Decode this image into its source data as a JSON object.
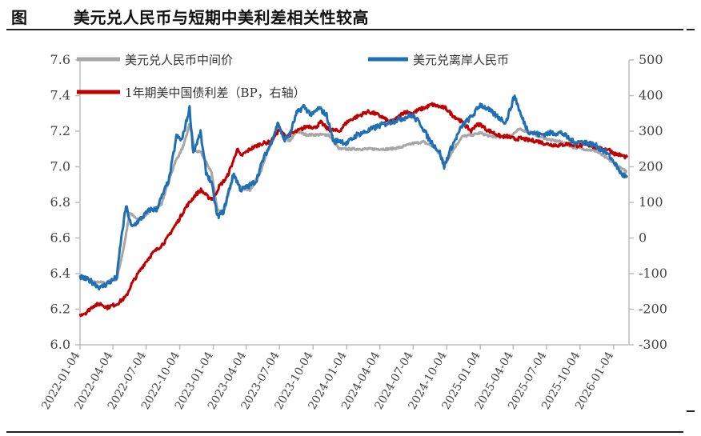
{
  "figure": {
    "label": "图",
    "title": "美元兑人民币与短期中美利差相关性较高"
  },
  "chart_data": {
    "type": "line",
    "legend_placement": "top",
    "grid": false,
    "xlim": [
      "2022-01-04",
      "2026-02-15"
    ],
    "x_ticks": [
      "2022-01-04",
      "2022-04-04",
      "2022-07-04",
      "2022-10-04",
      "2023-01-04",
      "2023-04-04",
      "2023-07-04",
      "2023-10-04",
      "2024-01-04",
      "2024-04-04",
      "2024-07-04",
      "2024-10-04",
      "2025-01-04",
      "2025-04-04",
      "2025-07-04",
      "2025-10-04",
      "2026-01-04"
    ],
    "y_left": {
      "ylim": [
        6.0,
        7.6
      ],
      "ticks": [
        "6.0",
        "6.2",
        "6.4",
        "6.6",
        "6.8",
        "7.0",
        "7.2",
        "7.4",
        "7.6"
      ]
    },
    "y_right": {
      "ylim": [
        -300,
        500
      ],
      "ticks": [
        "-300",
        "-200",
        "-100",
        "0",
        "100",
        "200",
        "300",
        "400",
        "500"
      ]
    },
    "series": [
      {
        "name": "美元兑人民币中间价",
        "axis": "left",
        "color": "#a6a6a6",
        "points": [
          [
            "2022-01-04",
            6.38
          ],
          [
            "2022-02-15",
            6.35
          ],
          [
            "2022-03-15",
            6.35
          ],
          [
            "2022-04-15",
            6.37
          ],
          [
            "2022-05-05",
            6.56
          ],
          [
            "2022-05-20",
            6.74
          ],
          [
            "2022-06-15",
            6.7
          ],
          [
            "2022-07-15",
            6.75
          ],
          [
            "2022-08-15",
            6.79
          ],
          [
            "2022-09-01",
            6.9
          ],
          [
            "2022-09-20",
            7.02
          ],
          [
            "2022-10-15",
            7.12
          ],
          [
            "2022-10-31",
            7.24
          ],
          [
            "2022-11-15",
            7.09
          ],
          [
            "2022-12-01",
            7.08
          ],
          [
            "2022-12-30",
            6.97
          ],
          [
            "2023-01-15",
            6.76
          ],
          [
            "2023-02-01",
            6.74
          ],
          [
            "2023-03-01",
            6.96
          ],
          [
            "2023-03-20",
            6.88
          ],
          [
            "2023-04-15",
            6.87
          ],
          [
            "2023-05-15",
            6.98
          ],
          [
            "2023-06-01",
            7.08
          ],
          [
            "2023-07-01",
            7.22
          ],
          [
            "2023-08-01",
            7.14
          ],
          [
            "2023-08-20",
            7.2
          ],
          [
            "2023-09-15",
            7.18
          ],
          [
            "2023-10-15",
            7.18
          ],
          [
            "2023-11-15",
            7.18
          ],
          [
            "2023-12-15",
            7.1
          ],
          [
            "2024-01-04",
            7.1
          ],
          [
            "2024-02-01",
            7.1
          ],
          [
            "2024-03-01",
            7.1
          ],
          [
            "2024-04-01",
            7.1
          ],
          [
            "2024-05-01",
            7.1
          ],
          [
            "2024-06-01",
            7.11
          ],
          [
            "2024-07-01",
            7.13
          ],
          [
            "2024-08-01",
            7.14
          ],
          [
            "2024-09-01",
            7.11
          ],
          [
            "2024-10-01",
            7.02
          ],
          [
            "2024-10-20",
            7.09
          ],
          [
            "2024-11-15",
            7.17
          ],
          [
            "2024-12-15",
            7.18
          ],
          [
            "2025-01-04",
            7.19
          ],
          [
            "2025-02-01",
            7.17
          ],
          [
            "2025-03-01",
            7.17
          ],
          [
            "2025-04-01",
            7.18
          ],
          [
            "2025-04-20",
            7.21
          ],
          [
            "2025-05-15",
            7.2
          ],
          [
            "2025-06-15",
            7.17
          ],
          [
            "2025-07-15",
            7.15
          ],
          [
            "2025-08-15",
            7.14
          ],
          [
            "2025-09-15",
            7.11
          ],
          [
            "2025-10-15",
            7.1
          ],
          [
            "2025-11-15",
            7.09
          ],
          [
            "2025-12-15",
            7.05
          ],
          [
            "2026-01-04",
            7.02
          ],
          [
            "2026-01-25",
            6.99
          ],
          [
            "2026-02-10",
            6.97
          ]
        ]
      },
      {
        "name": "美元兑离岸人民币",
        "axis": "left",
        "color": "#1f6fb5",
        "points": [
          [
            "2022-01-04",
            6.38
          ],
          [
            "2022-02-01",
            6.36
          ],
          [
            "2022-03-01",
            6.32
          ],
          [
            "2022-04-01",
            6.36
          ],
          [
            "2022-04-15",
            6.38
          ],
          [
            "2022-04-25",
            6.57
          ],
          [
            "2022-05-10",
            6.78
          ],
          [
            "2022-05-25",
            6.66
          ],
          [
            "2022-06-15",
            6.7
          ],
          [
            "2022-07-15",
            6.76
          ],
          [
            "2022-08-01",
            6.76
          ],
          [
            "2022-08-20",
            6.85
          ],
          [
            "2022-09-05",
            6.93
          ],
          [
            "2022-09-25",
            7.17
          ],
          [
            "2022-10-10",
            7.15
          ],
          [
            "2022-10-31",
            7.33
          ],
          [
            "2022-11-10",
            7.08
          ],
          [
            "2022-11-30",
            7.19
          ],
          [
            "2022-12-15",
            6.97
          ],
          [
            "2022-12-30",
            6.91
          ],
          [
            "2023-01-15",
            6.72
          ],
          [
            "2023-02-01",
            6.75
          ],
          [
            "2023-02-20",
            6.9
          ],
          [
            "2023-03-01",
            6.96
          ],
          [
            "2023-03-20",
            6.87
          ],
          [
            "2023-04-10",
            6.89
          ],
          [
            "2023-05-01",
            6.92
          ],
          [
            "2023-05-20",
            7.04
          ],
          [
            "2023-06-10",
            7.13
          ],
          [
            "2023-07-01",
            7.25
          ],
          [
            "2023-07-15",
            7.15
          ],
          [
            "2023-08-01",
            7.18
          ],
          [
            "2023-08-20",
            7.3
          ],
          [
            "2023-09-08",
            7.34
          ],
          [
            "2023-10-01",
            7.29
          ],
          [
            "2023-10-20",
            7.33
          ],
          [
            "2023-11-10",
            7.29
          ],
          [
            "2023-11-30",
            7.14
          ],
          [
            "2023-12-15",
            7.15
          ],
          [
            "2024-01-04",
            7.13
          ],
          [
            "2024-02-01",
            7.18
          ],
          [
            "2024-03-01",
            7.2
          ],
          [
            "2024-04-01",
            7.23
          ],
          [
            "2024-05-01",
            7.25
          ],
          [
            "2024-06-01",
            7.27
          ],
          [
            "2024-07-01",
            7.29
          ],
          [
            "2024-07-25",
            7.24
          ],
          [
            "2024-08-15",
            7.16
          ],
          [
            "2024-09-15",
            7.08
          ],
          [
            "2024-09-27",
            7.0
          ],
          [
            "2024-10-15",
            7.1
          ],
          [
            "2024-11-15",
            7.23
          ],
          [
            "2024-12-15",
            7.29
          ],
          [
            "2025-01-04",
            7.35
          ],
          [
            "2025-01-20",
            7.33
          ],
          [
            "2025-02-15",
            7.29
          ],
          [
            "2025-03-15",
            7.25
          ],
          [
            "2025-04-08",
            7.4
          ],
          [
            "2025-04-25",
            7.29
          ],
          [
            "2025-05-15",
            7.2
          ],
          [
            "2025-06-15",
            7.18
          ],
          [
            "2025-07-15",
            7.19
          ],
          [
            "2025-08-15",
            7.19
          ],
          [
            "2025-09-15",
            7.14
          ],
          [
            "2025-10-15",
            7.14
          ],
          [
            "2025-11-15",
            7.12
          ],
          [
            "2025-12-15",
            7.08
          ],
          [
            "2026-01-04",
            7.03
          ],
          [
            "2026-01-25",
            6.96
          ],
          [
            "2026-02-10",
            6.94
          ]
        ]
      },
      {
        "name": "1年期美中国债利差（BP，右轴）",
        "axis": "right",
        "color": "#c00000",
        "points": [
          [
            "2022-01-04",
            -215
          ],
          [
            "2022-01-20",
            -210
          ],
          [
            "2022-02-10",
            -190
          ],
          [
            "2022-03-01",
            -185
          ],
          [
            "2022-03-20",
            -195
          ],
          [
            "2022-04-15",
            -185
          ],
          [
            "2022-05-10",
            -165
          ],
          [
            "2022-05-25",
            -130
          ],
          [
            "2022-06-15",
            -95
          ],
          [
            "2022-07-01",
            -70
          ],
          [
            "2022-07-20",
            -45
          ],
          [
            "2022-08-10",
            -25
          ],
          [
            "2022-08-25",
            -10
          ],
          [
            "2022-09-15",
            25
          ],
          [
            "2022-10-01",
            50
          ],
          [
            "2022-10-20",
            85
          ],
          [
            "2022-11-15",
            120
          ],
          [
            "2022-12-01",
            135
          ],
          [
            "2022-12-20",
            115
          ],
          [
            "2023-01-04",
            110
          ],
          [
            "2023-01-20",
            145
          ],
          [
            "2023-02-10",
            170
          ],
          [
            "2023-03-01",
            220
          ],
          [
            "2023-03-10",
            250
          ],
          [
            "2023-03-20",
            230
          ],
          [
            "2023-04-15",
            250
          ],
          [
            "2023-05-15",
            265
          ],
          [
            "2023-06-10",
            270
          ],
          [
            "2023-07-04",
            305
          ],
          [
            "2023-07-20",
            285
          ],
          [
            "2023-08-10",
            295
          ],
          [
            "2023-09-01",
            305
          ],
          [
            "2023-09-20",
            315
          ],
          [
            "2023-10-10",
            310
          ],
          [
            "2023-10-25",
            325
          ],
          [
            "2023-11-15",
            305
          ],
          [
            "2023-12-15",
            300
          ],
          [
            "2024-01-04",
            325
          ],
          [
            "2024-01-20",
            335
          ],
          [
            "2024-02-10",
            345
          ],
          [
            "2024-03-01",
            355
          ],
          [
            "2024-03-20",
            350
          ],
          [
            "2024-04-10",
            340
          ],
          [
            "2024-05-01",
            325
          ],
          [
            "2024-05-20",
            335
          ],
          [
            "2024-06-10",
            355
          ],
          [
            "2024-07-01",
            350
          ],
          [
            "2024-07-20",
            360
          ],
          [
            "2024-08-10",
            368
          ],
          [
            "2024-08-25",
            375
          ],
          [
            "2024-09-10",
            370
          ],
          [
            "2024-10-01",
            365
          ],
          [
            "2024-10-20",
            345
          ],
          [
            "2024-11-10",
            330
          ],
          [
            "2024-11-25",
            315
          ],
          [
            "2024-12-10",
            300
          ],
          [
            "2024-12-20",
            315
          ],
          [
            "2025-01-04",
            320
          ],
          [
            "2025-01-20",
            305
          ],
          [
            "2025-02-10",
            295
          ],
          [
            "2025-03-01",
            285
          ],
          [
            "2025-03-20",
            285
          ],
          [
            "2025-04-08",
            278
          ],
          [
            "2025-04-25",
            280
          ],
          [
            "2025-05-15",
            275
          ],
          [
            "2025-06-10",
            272
          ],
          [
            "2025-07-01",
            265
          ],
          [
            "2025-07-20",
            262
          ],
          [
            "2025-08-10",
            260
          ],
          [
            "2025-09-01",
            265
          ],
          [
            "2025-09-20",
            260
          ],
          [
            "2025-10-10",
            260
          ],
          [
            "2025-10-25",
            262
          ],
          [
            "2025-11-15",
            255
          ],
          [
            "2025-12-01",
            250
          ],
          [
            "2025-12-20",
            250
          ],
          [
            "2026-01-04",
            238
          ],
          [
            "2026-01-25",
            232
          ],
          [
            "2026-02-10",
            226
          ]
        ]
      }
    ]
  }
}
